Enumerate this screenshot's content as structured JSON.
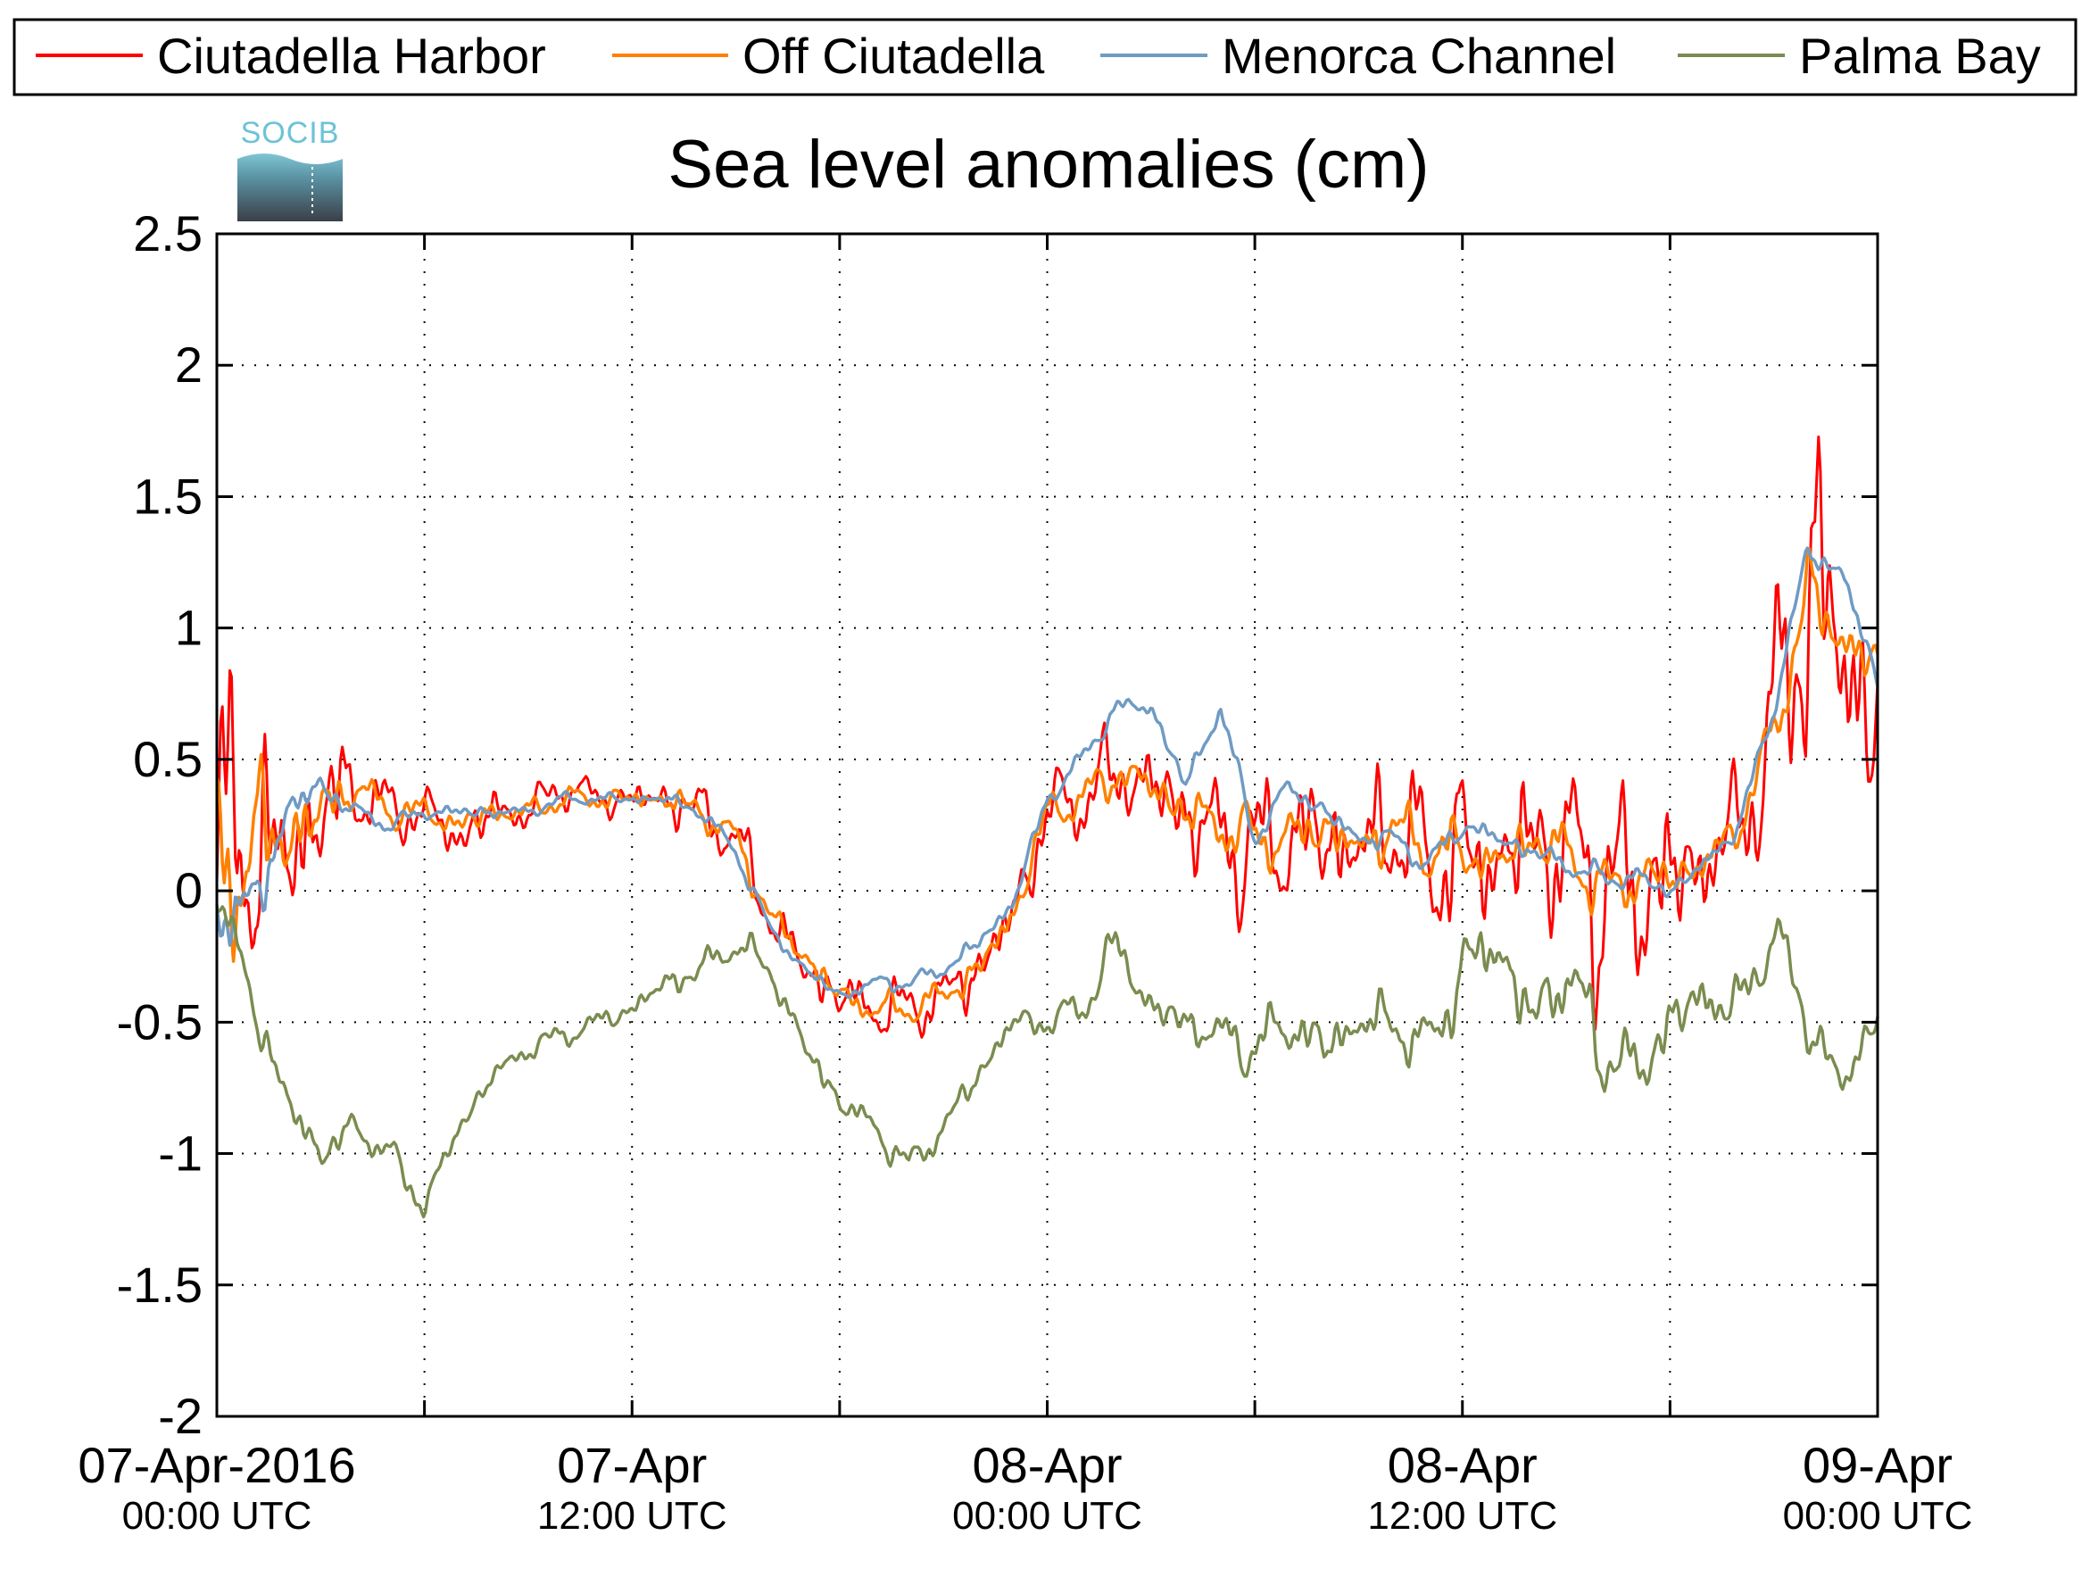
{
  "chart_data": {
    "type": "line",
    "title": "Sea level anomalies (cm)",
    "xlabel": "",
    "ylabel": "",
    "ylim": [
      -2,
      2.5
    ],
    "xlim": [
      "2016-04-07 00:00",
      "2016-04-09 00:00"
    ],
    "grid": true,
    "legend_position": "top",
    "yticks": [
      {
        "value": 2.5,
        "label": "2.5"
      },
      {
        "value": 2,
        "label": "2"
      },
      {
        "value": 1.5,
        "label": "1.5"
      },
      {
        "value": 1,
        "label": "1"
      },
      {
        "value": 0.5,
        "label": "0.5"
      },
      {
        "value": 0,
        "label": "0"
      },
      {
        "value": -0.5,
        "label": "-0.5"
      },
      {
        "value": -1,
        "label": "-1"
      },
      {
        "value": -1.5,
        "label": "-1.5"
      },
      {
        "value": -2,
        "label": "-2"
      }
    ],
    "xticks": [
      {
        "time": "2016-04-07 00:00",
        "label": "07-Apr-2016",
        "sublabel": "00:00 UTC"
      },
      {
        "time": "2016-04-07 12:00",
        "label": "07-Apr",
        "sublabel": "12:00 UTC"
      },
      {
        "time": "2016-04-08 00:00",
        "label": "08-Apr",
        "sublabel": "00:00 UTC"
      },
      {
        "time": "2016-04-08 12:00",
        "label": "08-Apr",
        "sublabel": "12:00 UTC"
      },
      {
        "time": "2016-04-09 00:00",
        "label": "09-Apr",
        "sublabel": "00:00 UTC"
      }
    ],
    "series": [
      {
        "name": "Ciutadella Harbor",
        "color": "#ff0000",
        "x": [
          "2016-04-07 00:00",
          "2016-04-07 01:00",
          "2016-04-07 02:00",
          "2016-04-07 03:00",
          "2016-04-07 04:00",
          "2016-04-07 05:00",
          "2016-04-07 06:00",
          "2016-04-07 07:00",
          "2016-04-07 08:00",
          "2016-04-07 09:00",
          "2016-04-07 10:00",
          "2016-04-07 11:00",
          "2016-04-07 12:00",
          "2016-04-07 13:00",
          "2016-04-07 14:00",
          "2016-04-07 15:00",
          "2016-04-07 16:00",
          "2016-04-07 17:00",
          "2016-04-07 18:00",
          "2016-04-07 19:00",
          "2016-04-07 20:00",
          "2016-04-07 21:00",
          "2016-04-07 22:00",
          "2016-04-07 23:00",
          "2016-04-08 00:00",
          "2016-04-08 01:00",
          "2016-04-08 02:00",
          "2016-04-08 03:00",
          "2016-04-08 04:00",
          "2016-04-08 05:00",
          "2016-04-08 06:00",
          "2016-04-08 07:00",
          "2016-04-08 08:00",
          "2016-04-08 09:00",
          "2016-04-08 10:00",
          "2016-04-08 11:00",
          "2016-04-08 12:00",
          "2016-04-08 13:00",
          "2016-04-08 14:00",
          "2016-04-08 15:00",
          "2016-04-08 16:00",
          "2016-04-08 17:00",
          "2016-04-08 18:00",
          "2016-04-08 19:00",
          "2016-04-08 20:00",
          "2016-04-08 21:00",
          "2016-04-08 22:00",
          "2016-04-08 23:00",
          "2016-04-09 00:00"
        ],
        "values": [
          0.0,
          0.2,
          0.1,
          0.3,
          0.4,
          0.3,
          0.3,
          0.2,
          0.3,
          0.3,
          0.4,
          0.35,
          0.35,
          0.35,
          0.3,
          0.2,
          -0.1,
          -0.3,
          -0.4,
          -0.45,
          -0.45,
          -0.4,
          -0.3,
          -0.1,
          0.3,
          0.35,
          0.45,
          0.4,
          0.3,
          0.2,
          0.15,
          0.2,
          0.2,
          0.15,
          0.25,
          0.1,
          0.15,
          0.1,
          0.2,
          0.15,
          0.0,
          0.0,
          0.05,
          0.1,
          0.25,
          0.6,
          1.2,
          0.9,
          0.6
        ],
        "noise": [
          1.2,
          0.7,
          0.5,
          0.4,
          0.25,
          0.15,
          0.15,
          0.15,
          0.15,
          0.1,
          0.1,
          0.1,
          0.1,
          0.15,
          0.15,
          0.15,
          0.15,
          0.15,
          0.15,
          0.15,
          0.15,
          0.15,
          0.2,
          0.2,
          0.2,
          0.2,
          0.25,
          0.25,
          0.3,
          0.35,
          0.35,
          0.35,
          0.35,
          0.35,
          0.35,
          0.4,
          0.4,
          0.4,
          0.45,
          0.5,
          0.55,
          0.55,
          0.45,
          0.35,
          0.3,
          0.6,
          0.95,
          0.75,
          0.6
        ]
      },
      {
        "name": "Off Ciutadella",
        "color": "#ff8000",
        "x": [
          "2016-04-07 00:00",
          "2016-04-07 01:00",
          "2016-04-07 02:00",
          "2016-04-07 03:00",
          "2016-04-07 04:00",
          "2016-04-07 05:00",
          "2016-04-07 06:00",
          "2016-04-07 07:00",
          "2016-04-07 08:00",
          "2016-04-07 09:00",
          "2016-04-07 10:00",
          "2016-04-07 11:00",
          "2016-04-07 12:00",
          "2016-04-07 13:00",
          "2016-04-07 14:00",
          "2016-04-07 15:00",
          "2016-04-07 16:00",
          "2016-04-07 17:00",
          "2016-04-07 18:00",
          "2016-04-07 19:00",
          "2016-04-07 20:00",
          "2016-04-07 21:00",
          "2016-04-07 22:00",
          "2016-04-07 23:00",
          "2016-04-08 00:00",
          "2016-04-08 01:00",
          "2016-04-08 02:00",
          "2016-04-08 03:00",
          "2016-04-08 04:00",
          "2016-04-08 05:00",
          "2016-04-08 06:00",
          "2016-04-08 07:00",
          "2016-04-08 08:00",
          "2016-04-08 09:00",
          "2016-04-08 10:00",
          "2016-04-08 11:00",
          "2016-04-08 12:00",
          "2016-04-08 13:00",
          "2016-04-08 14:00",
          "2016-04-08 15:00",
          "2016-04-08 16:00",
          "2016-04-08 17:00",
          "2016-04-08 18:00",
          "2016-04-08 19:00",
          "2016-04-08 20:00",
          "2016-04-08 21:00",
          "2016-04-08 22:00",
          "2016-04-08 23:00",
          "2016-04-09 00:00"
        ],
        "values": [
          0.0,
          0.2,
          0.2,
          0.3,
          0.4,
          0.3,
          0.3,
          0.25,
          0.3,
          0.3,
          0.35,
          0.35,
          0.35,
          0.35,
          0.3,
          0.2,
          -0.1,
          -0.25,
          -0.4,
          -0.45,
          -0.45,
          -0.4,
          -0.3,
          -0.1,
          0.3,
          0.35,
          0.45,
          0.4,
          0.3,
          0.25,
          0.2,
          0.2,
          0.25,
          0.15,
          0.25,
          0.15,
          0.15,
          0.1,
          0.2,
          0.15,
          0.0,
          0.05,
          0.05,
          0.1,
          0.25,
          0.6,
          1.15,
          0.95,
          0.85
        ],
        "noise": [
          0.6,
          0.4,
          0.3,
          0.2,
          0.1,
          0.08,
          0.08,
          0.08,
          0.08,
          0.06,
          0.06,
          0.06,
          0.06,
          0.08,
          0.08,
          0.08,
          0.08,
          0.08,
          0.08,
          0.08,
          0.08,
          0.08,
          0.1,
          0.1,
          0.1,
          0.1,
          0.12,
          0.12,
          0.15,
          0.15,
          0.15,
          0.15,
          0.15,
          0.15,
          0.15,
          0.15,
          0.15,
          0.15,
          0.15,
          0.15,
          0.15,
          0.15,
          0.12,
          0.12,
          0.1,
          0.15,
          0.2,
          0.2,
          0.15
        ]
      },
      {
        "name": "Menorca Channel",
        "color": "#6f9bc4",
        "x": [
          "2016-04-07 00:00",
          "2016-04-07 01:00",
          "2016-04-07 02:00",
          "2016-04-07 03:00",
          "2016-04-07 04:00",
          "2016-04-07 05:00",
          "2016-04-07 06:00",
          "2016-04-07 07:00",
          "2016-04-07 08:00",
          "2016-04-07 09:00",
          "2016-04-07 10:00",
          "2016-04-07 11:00",
          "2016-04-07 12:00",
          "2016-04-07 13:00",
          "2016-04-07 14:00",
          "2016-04-07 15:00",
          "2016-04-07 16:00",
          "2016-04-07 17:00",
          "2016-04-07 18:00",
          "2016-04-07 19:00",
          "2016-04-07 20:00",
          "2016-04-07 21:00",
          "2016-04-07 22:00",
          "2016-04-07 23:00",
          "2016-04-08 00:00",
          "2016-04-08 01:00",
          "2016-04-08 02:00",
          "2016-04-08 03:00",
          "2016-04-08 04:00",
          "2016-04-08 05:00",
          "2016-04-08 06:00",
          "2016-04-08 07:00",
          "2016-04-08 08:00",
          "2016-04-08 09:00",
          "2016-04-08 10:00",
          "2016-04-08 11:00",
          "2016-04-08 12:00",
          "2016-04-08 13:00",
          "2016-04-08 14:00",
          "2016-04-08 15:00",
          "2016-04-08 16:00",
          "2016-04-08 17:00",
          "2016-04-08 18:00",
          "2016-04-08 19:00",
          "2016-04-08 20:00",
          "2016-04-08 21:00",
          "2016-04-08 22:00",
          "2016-04-08 23:00",
          "2016-04-09 00:00"
        ],
        "values": [
          0.0,
          -0.1,
          0.3,
          0.4,
          0.3,
          0.25,
          0.3,
          0.3,
          0.3,
          0.3,
          0.35,
          0.35,
          0.35,
          0.35,
          0.3,
          0.15,
          -0.15,
          -0.3,
          -0.4,
          -0.35,
          -0.35,
          -0.3,
          -0.2,
          -0.05,
          0.35,
          0.5,
          0.7,
          0.7,
          0.4,
          0.7,
          0.2,
          0.4,
          0.3,
          0.2,
          0.2,
          0.1,
          0.25,
          0.2,
          0.15,
          0.1,
          0.05,
          0.05,
          0.0,
          0.1,
          0.25,
          0.7,
          1.3,
          1.2,
          0.8
        ],
        "noise": [
          0.25,
          0.2,
          0.12,
          0.08,
          0.05,
          0.04,
          0.04,
          0.04,
          0.04,
          0.03,
          0.03,
          0.03,
          0.03,
          0.04,
          0.04,
          0.04,
          0.04,
          0.04,
          0.04,
          0.04,
          0.04,
          0.04,
          0.05,
          0.05,
          0.05,
          0.05,
          0.05,
          0.05,
          0.06,
          0.06,
          0.06,
          0.06,
          0.06,
          0.06,
          0.06,
          0.06,
          0.06,
          0.06,
          0.06,
          0.06,
          0.06,
          0.06,
          0.05,
          0.05,
          0.05,
          0.06,
          0.07,
          0.07,
          0.06
        ]
      },
      {
        "name": "Palma Bay",
        "color": "#7a8c4f",
        "x": [
          "2016-04-07 00:00",
          "2016-04-07 01:00",
          "2016-04-07 02:00",
          "2016-04-07 03:00",
          "2016-04-07 04:00",
          "2016-04-07 05:00",
          "2016-04-07 06:00",
          "2016-04-07 07:00",
          "2016-04-07 08:00",
          "2016-04-07 09:00",
          "2016-04-07 10:00",
          "2016-04-07 11:00",
          "2016-04-07 12:00",
          "2016-04-07 13:00",
          "2016-04-07 14:00",
          "2016-04-07 15:00",
          "2016-04-07 16:00",
          "2016-04-07 17:00",
          "2016-04-07 18:00",
          "2016-04-07 19:00",
          "2016-04-07 20:00",
          "2016-04-07 21:00",
          "2016-04-07 22:00",
          "2016-04-07 23:00",
          "2016-04-08 00:00",
          "2016-04-08 01:00",
          "2016-04-08 02:00",
          "2016-04-08 03:00",
          "2016-04-08 04:00",
          "2016-04-08 05:00",
          "2016-04-08 06:00",
          "2016-04-08 07:00",
          "2016-04-08 08:00",
          "2016-04-08 09:00",
          "2016-04-08 10:00",
          "2016-04-08 11:00",
          "2016-04-08 12:00",
          "2016-04-08 13:00",
          "2016-04-08 14:00",
          "2016-04-08 15:00",
          "2016-04-08 16:00",
          "2016-04-08 17:00",
          "2016-04-08 18:00",
          "2016-04-08 19:00",
          "2016-04-08 20:00",
          "2016-04-08 21:00",
          "2016-04-08 22:00",
          "2016-04-08 23:00",
          "2016-04-09 00:00"
        ],
        "values": [
          0.0,
          -0.4,
          -0.8,
          -1.0,
          -0.9,
          -1.0,
          -1.2,
          -0.9,
          -0.7,
          -0.6,
          -0.55,
          -0.5,
          -0.45,
          -0.35,
          -0.3,
          -0.2,
          -0.3,
          -0.6,
          -0.8,
          -0.9,
          -1.05,
          -0.9,
          -0.7,
          -0.5,
          -0.5,
          -0.45,
          -0.2,
          -0.45,
          -0.5,
          -0.55,
          -0.6,
          -0.5,
          -0.6,
          -0.5,
          -0.5,
          -0.6,
          -0.3,
          -0.2,
          -0.5,
          -0.3,
          -0.6,
          -0.7,
          -0.5,
          -0.4,
          -0.45,
          -0.15,
          -0.5,
          -0.75,
          -0.45
        ],
        "noise": [
          0.1,
          0.12,
          0.12,
          0.1,
          0.08,
          0.08,
          0.08,
          0.06,
          0.06,
          0.06,
          0.06,
          0.06,
          0.06,
          0.08,
          0.08,
          0.08,
          0.08,
          0.08,
          0.08,
          0.08,
          0.08,
          0.08,
          0.08,
          0.08,
          0.08,
          0.1,
          0.12,
          0.12,
          0.12,
          0.12,
          0.15,
          0.15,
          0.15,
          0.15,
          0.15,
          0.15,
          0.2,
          0.2,
          0.2,
          0.2,
          0.2,
          0.2,
          0.18,
          0.18,
          0.15,
          0.15,
          0.15,
          0.12,
          0.12
        ]
      }
    ]
  },
  "logo": {
    "text": "SOCIB"
  },
  "colors": {
    "frame": "#000000",
    "background": "#ffffff"
  }
}
